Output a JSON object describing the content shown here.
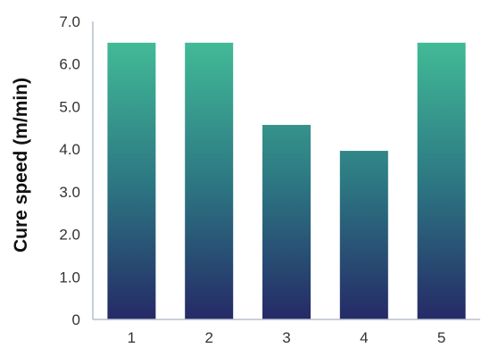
{
  "chart_data": {
    "type": "bar",
    "categories": [
      "1",
      "2",
      "3",
      "4",
      "5"
    ],
    "values": [
      6.5,
      6.5,
      4.57,
      3.96,
      6.5
    ],
    "xlabel": "",
    "ylabel": "Cure speed (m/min)",
    "ylim": [
      0,
      7.0
    ],
    "yticks": [
      0,
      1.0,
      2.0,
      3.0,
      4.0,
      5.0,
      6.0,
      7.0
    ],
    "ytick_labels": [
      "0",
      "1.0",
      "2.0",
      "3.0",
      "4.0",
      "5.0",
      "6.0",
      "7.0"
    ],
    "grid": false,
    "legend": "none",
    "colors": {
      "gradient_top": "#45c49a",
      "gradient_mid": "#2c7682",
      "gradient_bottom": "#252a66",
      "axis": "#b7bfcb",
      "text": "#333333"
    }
  }
}
